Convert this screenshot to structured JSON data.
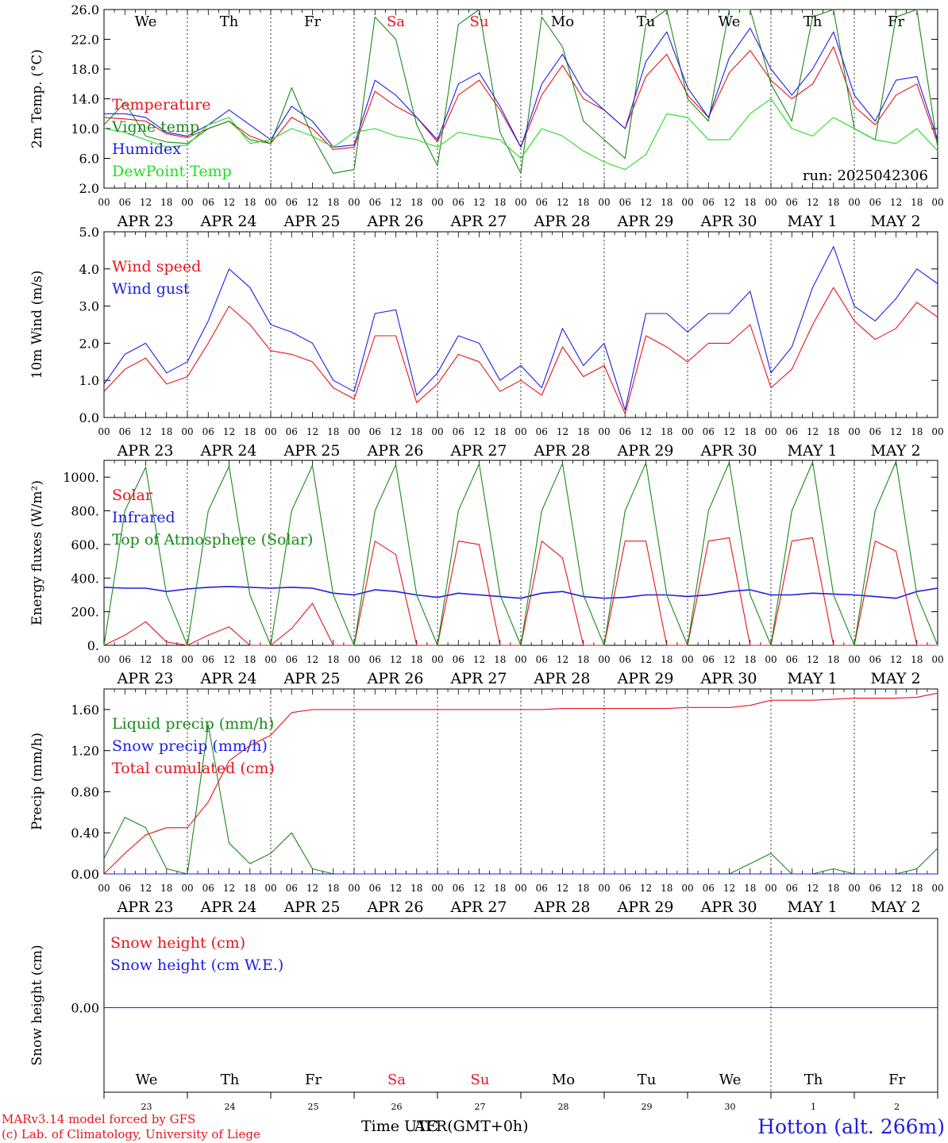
{
  "colors": {
    "red": "#e8141c",
    "blue": "#1e1ee6",
    "green": "#1a8a1a",
    "lightgreen": "#22dd22",
    "black": "#000000"
  },
  "days_top": [
    "We",
    "Th",
    "Fr",
    "Sa",
    "Su",
    "Mo",
    "Tu",
    "We",
    "Th",
    "Fr"
  ],
  "weekend_days": [
    3,
    4
  ],
  "date_labels": [
    "APR 23",
    "APR 24",
    "APR 25",
    "APR 26",
    "APR 27",
    "APR 28",
    "APR 29",
    "APR 30",
    "MAY  1",
    "MAY  2"
  ],
  "hour_ticks": [
    "00",
    "06",
    "12",
    "18"
  ],
  "final_tick": "00",
  "snow_days": [
    "We",
    "Th",
    "Fr",
    "Sa",
    "Su",
    "Mo",
    "Tu",
    "We",
    "Th",
    "Fr"
  ],
  "snow_day_numbers": [
    "23",
    "24",
    "25",
    "26",
    "27",
    "28",
    "29",
    "30",
    "1",
    "2"
  ],
  "footer": {
    "model": "MARv3.14 model forced by GFS",
    "lab": "(c) Lab. of Climatology, University of Liege",
    "time_axis_a": "Time UTC",
    "time_axis_b": "AFR(GMT+0h)",
    "station": "Hotton (alt. 266m)"
  },
  "chart_data": [
    {
      "type": "line",
      "ylabel": "2m Temp. (°C)",
      "ylim": [
        2.0,
        26.0
      ],
      "yticks": [
        "2.0",
        "6.0",
        "10.0",
        "14.0",
        "18.0",
        "22.0",
        "26.0"
      ],
      "annotation": "run: 2025042306",
      "x_hours": [
        0,
        6,
        12,
        18,
        24,
        30,
        36,
        42,
        48,
        54,
        60,
        66,
        72,
        78,
        84,
        90,
        96,
        102,
        108,
        114,
        120,
        126,
        132,
        138,
        144,
        150,
        156,
        162,
        168,
        174,
        180,
        186,
        192,
        198,
        204,
        210,
        216,
        222,
        228,
        234,
        240
      ],
      "series": [
        {
          "name": "Temperature",
          "color": "#e8141c",
          "values": [
            11.5,
            11.3,
            11.0,
            9.3,
            8.8,
            10.0,
            11.0,
            9.0,
            8.0,
            11.5,
            10.0,
            7.2,
            7.5,
            15.0,
            13.0,
            11.5,
            8.2,
            14.5,
            16.5,
            12.5,
            7.5,
            14.5,
            18.5,
            14.0,
            12.5,
            10.0,
            17.0,
            20.0,
            14.5,
            11.5,
            17.5,
            20.5,
            16.5,
            14.0,
            16.0,
            21.0,
            13.0,
            10.5,
            14.5,
            16.0,
            8.0
          ]
        },
        {
          "name": "Vigne temp",
          "color": "#1a8a1a",
          "values": [
            10.5,
            13.5,
            9.0,
            8.2,
            8.0,
            10.0,
            11.0,
            8.5,
            8.0,
            15.5,
            9.0,
            4.0,
            4.5,
            25.0,
            22.0,
            10.5,
            5.0,
            24.0,
            27.0,
            9.5,
            4.0,
            25.0,
            21.0,
            11.0,
            8.5,
            6.0,
            24.0,
            30.0,
            14.0,
            11.0,
            26.0,
            30.0,
            16.0,
            11.0,
            25.0,
            30.0,
            10.0,
            8.5,
            25.0,
            26.0,
            7.5
          ]
        },
        {
          "name": "Humidex",
          "color": "#1e1ee6",
          "values": [
            12.0,
            12.0,
            11.5,
            9.5,
            9.0,
            10.5,
            12.5,
            10.5,
            8.5,
            13.0,
            11.0,
            7.5,
            7.8,
            16.5,
            14.5,
            11.5,
            8.5,
            16.0,
            17.5,
            13.0,
            7.5,
            16.0,
            20.0,
            15.0,
            12.5,
            10.0,
            19.0,
            23.0,
            15.5,
            11.5,
            19.5,
            23.5,
            18.0,
            14.5,
            18.0,
            23.0,
            14.5,
            11.0,
            16.5,
            17.0,
            8.5
          ]
        },
        {
          "name": "DewPoint Temp",
          "color": "#22dd22",
          "values": [
            10.0,
            9.5,
            8.5,
            7.5,
            7.8,
            10.5,
            11.5,
            8.0,
            8.5,
            10.0,
            9.0,
            7.5,
            9.5,
            10.0,
            9.0,
            8.5,
            7.5,
            9.5,
            9.0,
            8.5,
            6.0,
            10.0,
            9.0,
            7.0,
            5.5,
            4.5,
            6.5,
            12.0,
            11.5,
            8.5,
            8.5,
            12.0,
            14.0,
            10.0,
            9.0,
            11.5,
            10.0,
            8.5,
            8.0,
            10.0,
            7.0
          ]
        }
      ]
    },
    {
      "type": "line",
      "ylabel": "10m Wind (m/s)",
      "ylim": [
        0.0,
        5.0
      ],
      "yticks": [
        "0.0",
        "1.0",
        "2.0",
        "3.0",
        "4.0",
        "5.0"
      ],
      "x_hours": [
        0,
        6,
        12,
        18,
        24,
        30,
        36,
        42,
        48,
        54,
        60,
        66,
        72,
        78,
        84,
        90,
        96,
        102,
        108,
        114,
        120,
        126,
        132,
        138,
        144,
        150,
        156,
        162,
        168,
        174,
        180,
        186,
        192,
        198,
        204,
        210,
        216,
        222,
        228,
        234,
        240
      ],
      "series": [
        {
          "name": "Wind speed",
          "color": "#e8141c",
          "values": [
            0.7,
            1.3,
            1.6,
            0.9,
            1.1,
            2.0,
            3.0,
            2.5,
            1.8,
            1.7,
            1.5,
            0.8,
            0.5,
            2.2,
            2.2,
            0.4,
            0.9,
            1.7,
            1.5,
            0.7,
            1.0,
            0.6,
            1.9,
            1.1,
            1.4,
            0.1,
            2.2,
            1.9,
            1.5,
            2.0,
            2.0,
            2.5,
            0.8,
            1.3,
            2.5,
            3.5,
            2.6,
            2.1,
            2.4,
            3.1,
            2.7
          ]
        },
        {
          "name": "Wind gust",
          "color": "#1e1ee6",
          "values": [
            0.9,
            1.7,
            2.0,
            1.2,
            1.5,
            2.6,
            4.0,
            3.5,
            2.5,
            2.3,
            2.0,
            1.0,
            0.7,
            2.8,
            2.9,
            0.6,
            1.2,
            2.2,
            2.0,
            1.0,
            1.4,
            0.8,
            2.4,
            1.4,
            2.0,
            0.2,
            2.8,
            2.8,
            2.3,
            2.8,
            2.8,
            3.4,
            1.2,
            1.9,
            3.5,
            4.6,
            3.0,
            2.6,
            3.2,
            4.0,
            3.6
          ]
        }
      ]
    },
    {
      "type": "line",
      "ylabel": "Energy fluxes (W/m²)",
      "ylim": [
        0,
        1100
      ],
      "yticks": [
        "0.",
        "200.",
        "400.",
        "600.",
        "800.",
        "1000."
      ],
      "x_hours": [
        0,
        6,
        12,
        18,
        24,
        30,
        36,
        42,
        48,
        54,
        60,
        66,
        72,
        78,
        84,
        90,
        96,
        102,
        108,
        114,
        120,
        126,
        132,
        138,
        144,
        150,
        156,
        162,
        168,
        174,
        180,
        186,
        192,
        198,
        204,
        210,
        216,
        222,
        228,
        234,
        240
      ],
      "series": [
        {
          "name": "Solar",
          "color": "#e8141c",
          "values": [
            0,
            60,
            140,
            20,
            0,
            60,
            110,
            0,
            0,
            100,
            250,
            0,
            0,
            620,
            540,
            0,
            0,
            620,
            600,
            0,
            0,
            620,
            520,
            0,
            0,
            620,
            620,
            0,
            0,
            620,
            640,
            0,
            0,
            620,
            640,
            0,
            0,
            620,
            560,
            0,
            0
          ]
        },
        {
          "name": "Infrared",
          "color": "#1e1ee6",
          "values": [
            345,
            340,
            340,
            320,
            335,
            345,
            350,
            345,
            340,
            345,
            340,
            310,
            300,
            330,
            320,
            300,
            285,
            310,
            300,
            290,
            280,
            310,
            320,
            290,
            280,
            285,
            300,
            300,
            290,
            300,
            320,
            330,
            300,
            300,
            310,
            305,
            300,
            290,
            280,
            320,
            340
          ]
        },
        {
          "name": "Top of Atmosphere (Solar)",
          "color": "#1a8a1a",
          "values": [
            0,
            800,
            1060,
            300,
            0,
            800,
            1065,
            300,
            0,
            800,
            1070,
            300,
            0,
            800,
            1075,
            300,
            0,
            800,
            1080,
            300,
            0,
            800,
            1082,
            300,
            0,
            800,
            1085,
            300,
            0,
            800,
            1088,
            300,
            0,
            800,
            1090,
            300,
            0,
            800,
            1093,
            300,
            0
          ]
        }
      ]
    },
    {
      "type": "line",
      "ylabel": "Precip (mm/h)",
      "ylim": [
        0.0,
        1.8
      ],
      "yticks": [
        "0.00",
        "0.40",
        "0.80",
        "1.20",
        "1.60"
      ],
      "x_hours": [
        0,
        6,
        12,
        18,
        24,
        30,
        36,
        42,
        48,
        54,
        60,
        66,
        72,
        78,
        84,
        90,
        96,
        102,
        108,
        114,
        120,
        126,
        132,
        138,
        144,
        150,
        156,
        162,
        168,
        174,
        180,
        186,
        192,
        198,
        204,
        210,
        216,
        222,
        228,
        234,
        240
      ],
      "series": [
        {
          "name": "Liquid precip (mm/h)",
          "color": "#1a8a1a",
          "values": [
            0.15,
            0.55,
            0.45,
            0.05,
            0.0,
            1.45,
            0.3,
            0.1,
            0.2,
            0.4,
            0.05,
            0.0,
            0.0,
            0.0,
            0.0,
            0.0,
            0.0,
            0.0,
            0.0,
            0.0,
            0.0,
            0.0,
            0.0,
            0.0,
            0.0,
            0.0,
            0.0,
            0.0,
            0.0,
            0.0,
            0.0,
            0.1,
            0.2,
            0.0,
            0.0,
            0.05,
            0.0,
            0.0,
            0.0,
            0.05,
            0.25
          ]
        },
        {
          "name": "Snow precip (mm/h)",
          "color": "#1e1ee6",
          "values": [
            0,
            0,
            0,
            0,
            0,
            0,
            0,
            0,
            0,
            0,
            0,
            0,
            0,
            0,
            0,
            0,
            0,
            0,
            0,
            0,
            0,
            0,
            0,
            0,
            0,
            0,
            0,
            0,
            0,
            0,
            0,
            0,
            0,
            0,
            0,
            0,
            0,
            0,
            0,
            0,
            0
          ]
        },
        {
          "name": "Total cumulated (cm)",
          "color": "#e8141c",
          "values": [
            0.0,
            0.2,
            0.38,
            0.45,
            0.45,
            0.7,
            1.1,
            1.25,
            1.35,
            1.57,
            1.6,
            1.6,
            1.6,
            1.6,
            1.6,
            1.6,
            1.6,
            1.6,
            1.6,
            1.6,
            1.6,
            1.6,
            1.61,
            1.61,
            1.61,
            1.61,
            1.61,
            1.61,
            1.62,
            1.62,
            1.62,
            1.64,
            1.69,
            1.69,
            1.69,
            1.7,
            1.71,
            1.71,
            1.71,
            1.72,
            1.76
          ]
        }
      ]
    },
    {
      "type": "line",
      "ylabel": "Snow height (cm)",
      "yticks": [
        "0.00"
      ],
      "x_hours": [
        0,
        240
      ],
      "series": [
        {
          "name": "Snow height (cm)",
          "color": "#e8141c",
          "values": [
            0,
            0
          ]
        },
        {
          "name": "Snow height (cm W.E.)",
          "color": "#1e1ee6",
          "values": [
            0,
            0
          ]
        }
      ]
    }
  ]
}
